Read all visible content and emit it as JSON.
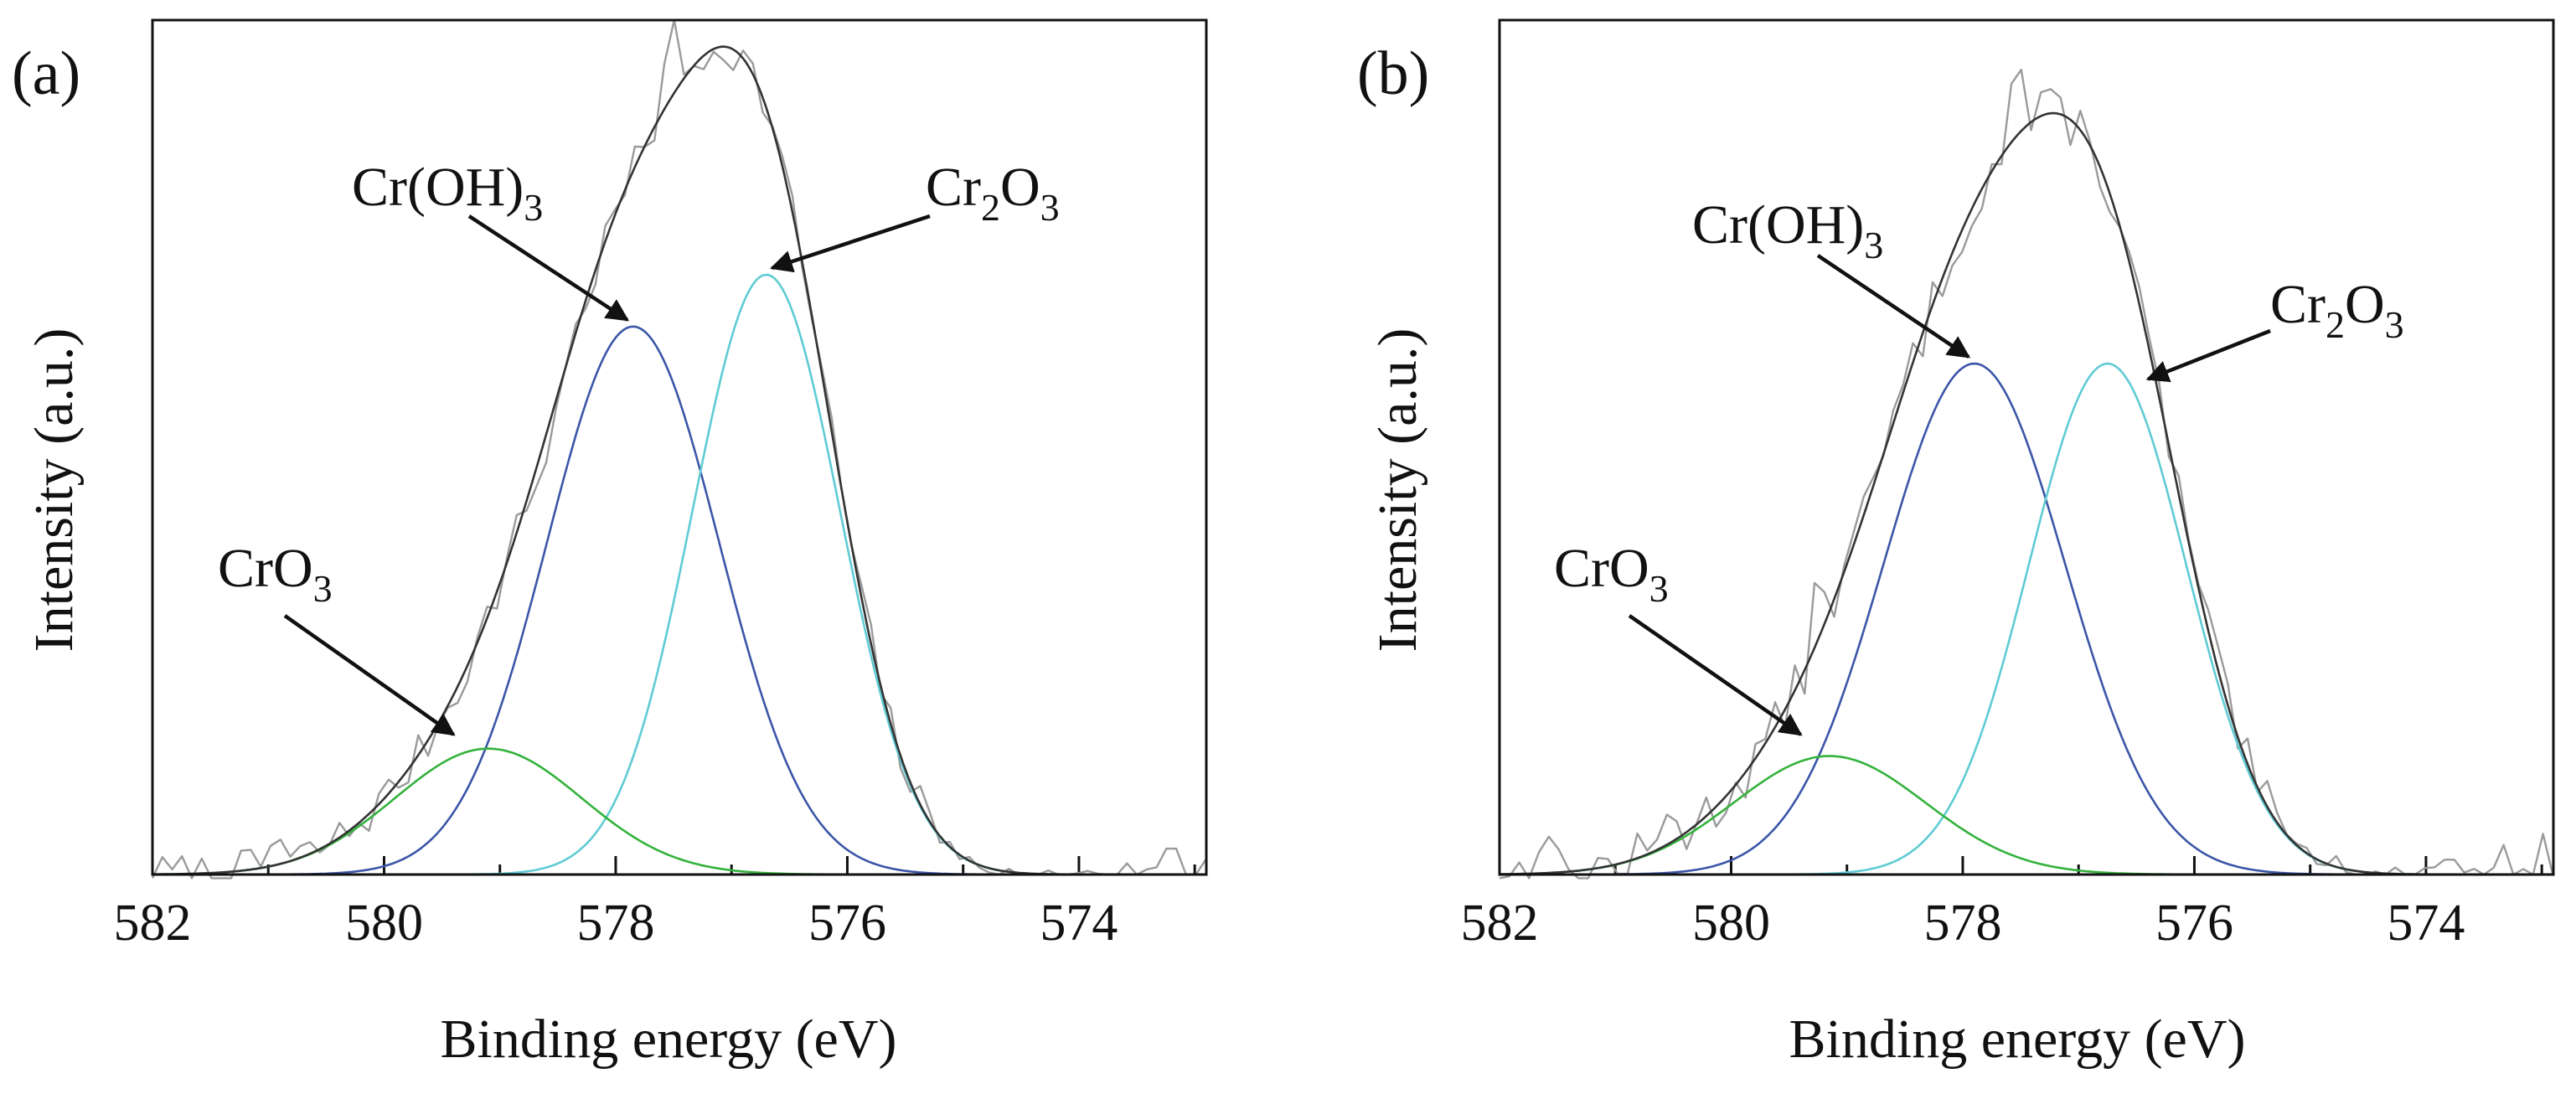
{
  "chart_data": [
    {
      "type": "line",
      "panel_label": "(a)",
      "xlabel": "Binding energy (eV)",
      "ylabel": "Intensity (a.u.)",
      "xlim": [
        582,
        572.9
      ],
      "ylim": [
        0,
        1.0
      ],
      "x_reversed": true,
      "xticks": [
        582,
        580,
        578,
        576,
        574
      ],
      "grid": false,
      "legend": "none",
      "raw_noise_seed": 7,
      "raw_noise_amp": 0.028,
      "raw_spikes": [
        [
          577.5,
          0.075
        ],
        [
          578.6,
          -0.03
        ],
        [
          580.9,
          0.03
        ]
      ],
      "raw_tail": [
        [
          572.9,
          0.02
        ],
        [
          573.2,
          0.035
        ],
        [
          573.6,
          0.015
        ],
        [
          574.2,
          0.0
        ]
      ],
      "series": [
        {
          "name": "Cr(OH)3",
          "role": "component",
          "color": "#3b56a8",
          "center": 577.85,
          "height": 0.74,
          "fwhm": 1.75
        },
        {
          "name": "Cr2O3",
          "role": "component",
          "color": "#5fcbd4",
          "center": 576.7,
          "height": 0.81,
          "fwhm": 1.5
        },
        {
          "name": "CrO3",
          "role": "component",
          "color": "#33b23c",
          "center": 579.1,
          "height": 0.17,
          "fwhm": 1.9
        },
        {
          "name": "Envelope",
          "role": "fit",
          "color": "#333333"
        },
        {
          "name": "Measured",
          "role": "raw",
          "color": "#9a9a9a"
        }
      ],
      "annotations": [
        {
          "name": "cr-oh3-label",
          "base": "Cr(OH)",
          "sub": "3",
          "rest": "",
          "arrow_to": [
            577.9,
            0.74
          ]
        },
        {
          "name": "cr2o3-label",
          "base": "Cr",
          "sub": "2",
          "rest": "O",
          "sub2": "3",
          "arrow_to": [
            576.65,
            0.81
          ]
        },
        {
          "name": "cro3-label",
          "base": "CrO",
          "sub": "3",
          "rest": "",
          "arrow_to": [
            579.4,
            0.18
          ]
        }
      ]
    },
    {
      "type": "line",
      "panel_label": "(b)",
      "xlabel": "Binding energy (eV)",
      "ylabel": "Intensity (a.u.)",
      "xlim": [
        582,
        572.9
      ],
      "ylim": [
        0,
        1.0
      ],
      "x_reversed": true,
      "xticks": [
        582,
        580,
        578,
        576,
        574
      ],
      "grid": false,
      "legend": "none",
      "raw_noise_seed": 13,
      "raw_noise_amp": 0.035,
      "raw_spikes": [
        [
          577.5,
          0.075
        ],
        [
          579.2,
          0.06
        ],
        [
          580.5,
          0.04
        ],
        [
          581.6,
          0.06
        ]
      ],
      "raw_tail": [
        [
          573.3,
          0.04
        ],
        [
          573.0,
          0.055
        ],
        [
          573.8,
          0.02
        ],
        [
          574.8,
          0.025
        ]
      ],
      "series": [
        {
          "name": "Cr(OH)3",
          "role": "component",
          "color": "#3b56a8",
          "center": 577.9,
          "height": 0.69,
          "fwhm": 1.85
        },
        {
          "name": "Cr2O3",
          "role": "component",
          "color": "#5fcbd4",
          "center": 576.75,
          "height": 0.69,
          "fwhm": 1.6
        },
        {
          "name": "CrO3",
          "role": "component",
          "color": "#33b23c",
          "center": 579.15,
          "height": 0.16,
          "fwhm": 1.95
        },
        {
          "name": "Envelope",
          "role": "fit",
          "color": "#333333"
        },
        {
          "name": "Measured",
          "role": "raw",
          "color": "#9a9a9a"
        }
      ],
      "annotations": [
        {
          "name": "cr-oh3-label",
          "base": "Cr(OH)",
          "sub": "3",
          "rest": "",
          "arrow_to": [
            577.95,
            0.69
          ]
        },
        {
          "name": "cr2o3-label",
          "base": "Cr",
          "sub": "2",
          "rest": "O",
          "sub2": "3",
          "arrow_to": [
            576.4,
            0.66
          ]
        },
        {
          "name": "cro3-label",
          "base": "CrO",
          "sub": "3",
          "rest": "",
          "arrow_to": [
            579.4,
            0.18
          ]
        }
      ]
    }
  ]
}
